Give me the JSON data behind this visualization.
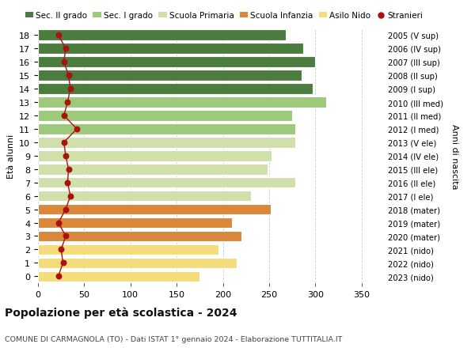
{
  "ages": [
    0,
    1,
    2,
    3,
    4,
    5,
    6,
    7,
    8,
    9,
    10,
    11,
    12,
    13,
    14,
    15,
    16,
    17,
    18
  ],
  "years": [
    "2023 (nido)",
    "2022 (nido)",
    "2021 (nido)",
    "2020 (mater)",
    "2019 (mater)",
    "2018 (mater)",
    "2017 (I ele)",
    "2016 (II ele)",
    "2015 (III ele)",
    "2014 (IV ele)",
    "2013 (V ele)",
    "2012 (I med)",
    "2011 (II med)",
    "2010 (III med)",
    "2009 (I sup)",
    "2008 (II sup)",
    "2007 (III sup)",
    "2006 (IV sup)",
    "2005 (V sup)"
  ],
  "bar_values": [
    175,
    215,
    195,
    220,
    210,
    252,
    230,
    278,
    248,
    253,
    278,
    278,
    275,
    312,
    297,
    285,
    300,
    287,
    268
  ],
  "bar_colors": [
    "#f5dc7a",
    "#f5dc7a",
    "#f5dc7a",
    "#d9873a",
    "#d9873a",
    "#d9873a",
    "#cfe0aa",
    "#cfe0aa",
    "#cfe0aa",
    "#cfe0aa",
    "#cfe0aa",
    "#9dc97a",
    "#9dc97a",
    "#9dc97a",
    "#4d7c3f",
    "#4d7c3f",
    "#4d7c3f",
    "#4d7c3f",
    "#4d7c3f"
  ],
  "stranieri": [
    22,
    27,
    25,
    30,
    22,
    30,
    35,
    32,
    33,
    30,
    28,
    42,
    28,
    32,
    35,
    33,
    28,
    30,
    22
  ],
  "stranieri_color": "#aa1111",
  "legend_labels": [
    "Sec. II grado",
    "Sec. I grado",
    "Scuola Primaria",
    "Scuola Infanzia",
    "Asilo Nido",
    "Stranieri"
  ],
  "legend_colors": [
    "#4d7c3f",
    "#9dc97a",
    "#cfe0aa",
    "#d9873a",
    "#f5dc7a",
    "#aa1111"
  ],
  "ylabel": "Età alunni",
  "ylabel_right": "Anni di nascita",
  "title": "Popolazione per età scolastica - 2024",
  "subtitle": "COMUNE DI CARMAGNOLA (TO) - Dati ISTAT 1° gennaio 2024 - Elaborazione TUTTITALIA.IT",
  "xlim": [
    0,
    370
  ],
  "xticks": [
    0,
    50,
    100,
    150,
    200,
    250,
    300,
    350
  ],
  "bg_color": "#ffffff",
  "grid_color": "#cccccc"
}
